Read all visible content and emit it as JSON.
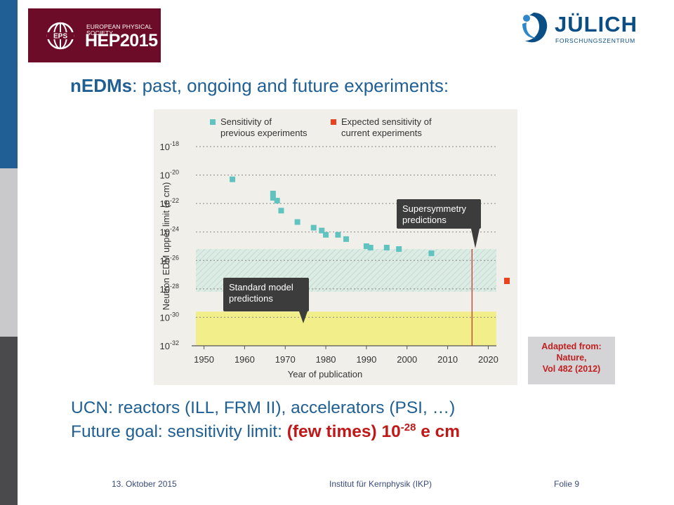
{
  "logos": {
    "conference": {
      "org_line1": "EUROPEAN PHYSICAL SOCIETY",
      "name": "HEP2015",
      "emblem_text": "EPS"
    },
    "institute": {
      "name": "JÜLICH",
      "subtitle": "FORSCHUNGSZENTRUM"
    }
  },
  "title": {
    "bold": "nEDMs",
    "rest": ": past, ongoing and future experiments:"
  },
  "chart_data": {
    "type": "scatter",
    "xlabel": "Year of publication",
    "ylabel": "Neutron EDM upper limit (e cm)",
    "xlim": [
      1948,
      2022
    ],
    "x_ticks": [
      "1950",
      "1960",
      "1970",
      "1980",
      "1990",
      "2000",
      "2010",
      "2020"
    ],
    "y_log10_lim": [
      -32,
      -18
    ],
    "y_ticks_exponent": [
      "-18",
      "-20",
      "-22",
      "-24",
      "-26",
      "-28",
      "-30",
      "-32"
    ],
    "y_tick_base": "10",
    "legend": [
      {
        "label_line1": "Sensitivity of",
        "label_line2": "previous experiments",
        "color": "#61c3c0"
      },
      {
        "label_line1": "Expected sensitivity of",
        "label_line2": "current experiments",
        "color": "#e8431e"
      }
    ],
    "series": [
      {
        "name": "Sensitivity of previous experiments",
        "color": "#61c3c0",
        "points": [
          {
            "x": 1957,
            "log10_y": -20.3
          },
          {
            "x": 1967,
            "log10_y": -21.3
          },
          {
            "x": 1967,
            "log10_y": -21.6
          },
          {
            "x": 1968,
            "log10_y": -21.8
          },
          {
            "x": 1969,
            "log10_y": -22.5
          },
          {
            "x": 1973,
            "log10_y": -23.3
          },
          {
            "x": 1977,
            "log10_y": -23.7
          },
          {
            "x": 1979,
            "log10_y": -23.9
          },
          {
            "x": 1980,
            "log10_y": -24.2
          },
          {
            "x": 1983,
            "log10_y": -24.2
          },
          {
            "x": 1985,
            "log10_y": -24.5
          },
          {
            "x": 1990,
            "log10_y": -25.0
          },
          {
            "x": 1991,
            "log10_y": -25.1
          },
          {
            "x": 1995,
            "log10_y": -25.1
          },
          {
            "x": 1998,
            "log10_y": -25.2
          },
          {
            "x": 2006,
            "log10_y": -25.5
          }
        ]
      }
    ],
    "regions": [
      {
        "label_line1": "Supersymmetry",
        "label_line2": "predictions",
        "log10_from": -28.2,
        "log10_to": -25.2,
        "color": "#b8d8d0"
      },
      {
        "label_line1": "Standard model",
        "label_line2": "predictions",
        "log10_from": -32,
        "log10_to": -29.6,
        "color": "#f2ee8a"
      }
    ],
    "marker_line_year": 2016,
    "grid": true
  },
  "source_note": {
    "line1": "Adapted from:",
    "line2": "Nature,",
    "line3": "Vol 482 (2012)"
  },
  "bullets": {
    "arrow": "",
    "line1": "UCN: reactors (ILL, FRM II), accelerators (PSI, …)",
    "line2_prefix": "Future goal: sensitivity limit: ",
    "line2_highlight": "(few times) 10",
    "line2_exponent": "-28",
    "line2_unit": " e cm"
  },
  "footer": {
    "date": "13. Oktober 2015",
    "institute": "Institut für Kernphysik (IKP)",
    "page": "Folie 9"
  }
}
